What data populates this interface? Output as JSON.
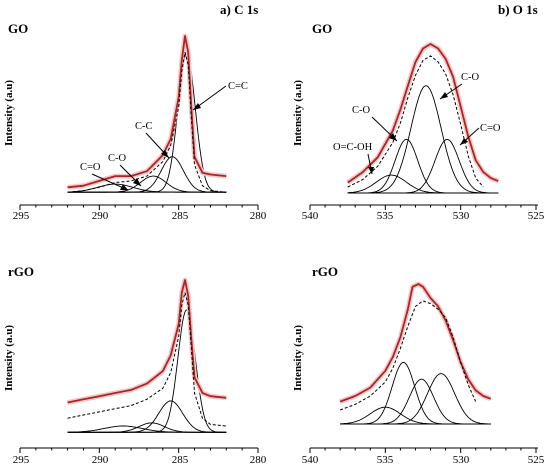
{
  "chart_data": [
    {
      "id": "go_c1s",
      "type": "line",
      "title": "a) C 1s",
      "sample": "GO",
      "ylabel": "Intensity (a.u)",
      "xlim": [
        295,
        280
      ],
      "xticks": [
        "295",
        "290",
        "285",
        "280"
      ],
      "ylim": [
        0,
        1
      ],
      "series": [
        {
          "role": "experimental",
          "color": "#b22222",
          "x": [
            292.0,
            291.0,
            290.0,
            289.0,
            288.0,
            287.0,
            286.0,
            285.5,
            285.0,
            284.8,
            284.6,
            284.4,
            284.2,
            284.0,
            283.5,
            283.0,
            282.0
          ],
          "y": [
            0.06,
            0.07,
            0.1,
            0.13,
            0.13,
            0.16,
            0.26,
            0.36,
            0.62,
            0.85,
            1.0,
            0.9,
            0.55,
            0.25,
            0.15,
            0.14,
            0.13
          ]
        },
        {
          "role": "envelope",
          "x": [
            292.0,
            291.0,
            290.0,
            289.0,
            288.0,
            287.0,
            286.0,
            285.5,
            285.0,
            284.8,
            284.6,
            284.4,
            284.2,
            284.0,
            283.5,
            283.0,
            282.0
          ],
          "y": [
            0.03,
            0.04,
            0.06,
            0.09,
            0.1,
            0.13,
            0.22,
            0.32,
            0.56,
            0.78,
            0.9,
            0.82,
            0.48,
            0.2,
            0.07,
            0.04,
            0.03
          ]
        },
        {
          "role": "component",
          "label": "C=C",
          "center": 284.5,
          "width": 0.55,
          "height": 0.86
        },
        {
          "role": "component",
          "label": "C-C",
          "center": 285.4,
          "width": 0.7,
          "height": 0.22
        },
        {
          "role": "component",
          "label": "C-O",
          "center": 286.6,
          "width": 0.8,
          "height": 0.1
        },
        {
          "role": "component",
          "label": "C=O",
          "center": 289.0,
          "width": 1.1,
          "height": 0.05
        }
      ],
      "baseline": 0.03
    },
    {
      "id": "go_o1s",
      "type": "line",
      "title": "b) O 1s",
      "sample": "GO",
      "ylabel": "Intensity (a.u)",
      "xlim": [
        540,
        525
      ],
      "xticks": [
        "540",
        "535",
        "530",
        "525"
      ],
      "ylim": [
        0,
        1
      ],
      "series": [
        {
          "role": "experimental",
          "color": "#b22222",
          "x": [
            537.5,
            536.5,
            535.5,
            534.5,
            534.0,
            533.5,
            533.0,
            532.5,
            532.0,
            531.5,
            531.0,
            530.5,
            530.0,
            529.5,
            529.0,
            528.5,
            528.0,
            527.5
          ],
          "y": [
            0.07,
            0.14,
            0.24,
            0.42,
            0.56,
            0.72,
            0.88,
            0.97,
            1.0,
            0.97,
            0.9,
            0.78,
            0.58,
            0.38,
            0.22,
            0.14,
            0.1,
            0.08
          ]
        },
        {
          "role": "envelope",
          "x": [
            537.5,
            536.5,
            535.5,
            534.5,
            534.0,
            533.5,
            533.0,
            532.5,
            532.0,
            531.5,
            531.0,
            530.5,
            530.0,
            529.5,
            529.0,
            528.5
          ],
          "y": [
            0.04,
            0.09,
            0.18,
            0.34,
            0.47,
            0.64,
            0.79,
            0.89,
            0.92,
            0.88,
            0.8,
            0.66,
            0.46,
            0.25,
            0.1,
            0.04
          ]
        },
        {
          "role": "component",
          "label": "C-O",
          "center": 532.3,
          "width": 1.0,
          "height": 0.72
        },
        {
          "role": "component",
          "label": "C-O",
          "center": 533.6,
          "width": 0.75,
          "height": 0.36
        },
        {
          "role": "component",
          "label": "C=O",
          "center": 530.9,
          "width": 0.8,
          "height": 0.36
        },
        {
          "role": "component",
          "label": "O=C-OH",
          "center": 534.6,
          "width": 1.0,
          "height": 0.12
        }
      ],
      "baseline": 0.0
    },
    {
      "id": "rgo_c1s",
      "type": "line",
      "title": "",
      "sample": "rGO",
      "ylabel": "Intensity (a.u)",
      "xlim": [
        295,
        280
      ],
      "xticks": [
        "295",
        "290",
        "285",
        "280"
      ],
      "ylim": [
        0,
        1
      ],
      "series": [
        {
          "role": "experimental",
          "color": "#b22222",
          "x": [
            292.0,
            291.0,
            290.0,
            289.0,
            288.0,
            287.0,
            286.0,
            285.5,
            285.0,
            284.8,
            284.6,
            284.4,
            284.2,
            284.0,
            283.5,
            283.0,
            282.0
          ],
          "y": [
            0.22,
            0.24,
            0.26,
            0.28,
            0.3,
            0.34,
            0.42,
            0.52,
            0.72,
            0.92,
            1.0,
            0.9,
            0.62,
            0.38,
            0.28,
            0.26,
            0.25
          ]
        },
        {
          "role": "envelope",
          "x": [
            292.0,
            291.0,
            290.0,
            289.0,
            288.0,
            287.0,
            286.0,
            285.5,
            285.0,
            284.8,
            284.6,
            284.4,
            284.2,
            284.0,
            283.5,
            283.0,
            282.0
          ],
          "y": [
            0.12,
            0.14,
            0.16,
            0.18,
            0.2,
            0.24,
            0.31,
            0.41,
            0.64,
            0.84,
            0.92,
            0.84,
            0.56,
            0.28,
            0.12,
            0.08,
            0.07
          ]
        },
        {
          "role": "component",
          "center": 284.5,
          "width": 0.55,
          "height": 0.78
        },
        {
          "role": "component",
          "center": 285.5,
          "width": 0.75,
          "height": 0.2
        },
        {
          "role": "component",
          "center": 286.7,
          "width": 0.8,
          "height": 0.06
        },
        {
          "role": "component",
          "center": 288.5,
          "width": 1.2,
          "height": 0.04
        }
      ],
      "baseline": 0.03
    },
    {
      "id": "rgo_o1s",
      "type": "line",
      "title": "",
      "sample": "rGO",
      "ylabel": "Intensity (a.u)",
      "xlim": [
        540,
        525
      ],
      "xticks": [
        "540",
        "535",
        "530",
        "525"
      ],
      "ylim": [
        0,
        1
      ],
      "series": [
        {
          "role": "experimental",
          "color": "#b22222",
          "x": [
            538.0,
            537.0,
            536.0,
            535.0,
            534.5,
            534.0,
            533.5,
            533.2,
            532.8,
            532.5,
            532.0,
            531.5,
            531.0,
            530.5,
            530.0,
            529.5,
            529.0,
            528.5,
            528.0
          ],
          "y": [
            0.16,
            0.2,
            0.26,
            0.38,
            0.48,
            0.62,
            0.82,
            0.98,
            1.0,
            0.98,
            0.9,
            0.84,
            0.74,
            0.6,
            0.44,
            0.32,
            0.24,
            0.2,
            0.18
          ]
        },
        {
          "role": "envelope",
          "x": [
            538.0,
            537.0,
            536.0,
            535.0,
            534.5,
            534.0,
            533.5,
            533.0,
            532.5,
            532.0,
            531.5,
            531.0,
            530.5,
            530.0,
            529.5,
            529.0
          ],
          "y": [
            0.1,
            0.14,
            0.2,
            0.3,
            0.4,
            0.54,
            0.7,
            0.84,
            0.88,
            0.86,
            0.82,
            0.76,
            0.62,
            0.44,
            0.28,
            0.16
          ]
        },
        {
          "role": "component",
          "center": 533.8,
          "width": 0.75,
          "height": 0.44
        },
        {
          "role": "component",
          "center": 532.6,
          "width": 0.8,
          "height": 0.32
        },
        {
          "role": "component",
          "center": 531.3,
          "width": 0.9,
          "height": 0.36
        },
        {
          "role": "component",
          "center": 535.0,
          "width": 1.0,
          "height": 0.12
        }
      ],
      "baseline": 0.0
    }
  ]
}
